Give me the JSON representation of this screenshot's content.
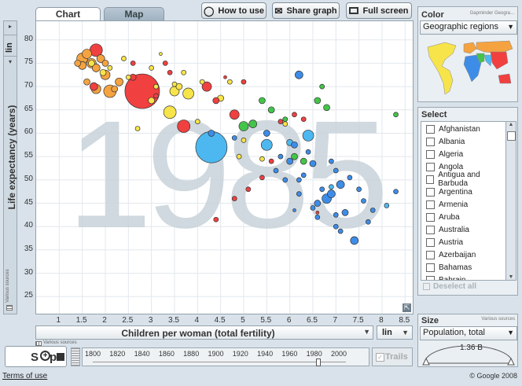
{
  "tabs": {
    "chart": "Chart",
    "map": "Map"
  },
  "toolbar": {
    "how_to_use": "How to use",
    "share_graph": "Share graph",
    "full_screen": "Full screen"
  },
  "y_axis": {
    "scale": "lin",
    "label": "Life expectancy (years)",
    "sources": "Various sources",
    "ticks": [
      "80",
      "75",
      "70",
      "65",
      "60",
      "55",
      "50",
      "45",
      "40",
      "35",
      "30",
      "25"
    ]
  },
  "x_axis": {
    "scale": "lin",
    "label": "Children per woman (total fertility)",
    "sources": "Various sources",
    "ticks": [
      "1",
      "1.5",
      "2",
      "2.5",
      "3",
      "3.5",
      "4",
      "4.5",
      "5",
      "5.5",
      "6",
      "6.5",
      "7",
      "7.5",
      "8",
      "8.5"
    ]
  },
  "year_watermark": "1985",
  "color_panel": {
    "title": "Color",
    "credit": "Gapminder Geogra…",
    "selected": "Geographic regions",
    "region_colors": {
      "americas": "#f7e44a",
      "europe": "#f4a340",
      "africa": "#3d8de8",
      "middle_east": "#44c44a",
      "south_asia": "#4db8f0",
      "east_asia": "#f04040"
    }
  },
  "select_panel": {
    "title": "Select",
    "countries": [
      "Afghanistan",
      "Albania",
      "Algeria",
      "Angola",
      "Antigua and Barbuda",
      "Argentina",
      "Armenia",
      "Aruba",
      "Australia",
      "Austria",
      "Azerbaijan",
      "Bahamas",
      "Bahrain"
    ],
    "deselect_all": "Deselect all"
  },
  "size_panel": {
    "title": "Size",
    "sources": "Various sources",
    "selected": "Population, total",
    "gauge_value": "1.36 B"
  },
  "playback": {
    "control": "Stop",
    "years": [
      "1800",
      "1820",
      "1840",
      "1860",
      "1880",
      "1900",
      "1920",
      "1940",
      "1960",
      "1980",
      "2000"
    ],
    "current_year": 1985,
    "trails": "Trails"
  },
  "footer": {
    "terms": "Terms of use",
    "copyright": "© Google 2008"
  },
  "chart_data": {
    "type": "scatter",
    "xlabel": "Children per woman (total fertility)",
    "ylabel": "Life expectancy (years)",
    "xlim": [
      0.5,
      8.7
    ],
    "ylim": [
      21,
      84
    ],
    "grid": true,
    "points": [
      {
        "x": 1.5,
        "y": 76,
        "r": 7,
        "c": "#f4a340"
      },
      {
        "x": 1.6,
        "y": 77,
        "r": 6,
        "c": "#f4a340"
      },
      {
        "x": 1.7,
        "y": 75,
        "r": 6,
        "c": "#f4a340"
      },
      {
        "x": 1.8,
        "y": 74,
        "r": 5,
        "c": "#f4a340"
      },
      {
        "x": 1.5,
        "y": 74.5,
        "r": 5,
        "c": "#f4a340"
      },
      {
        "x": 1.9,
        "y": 76,
        "r": 5,
        "c": "#f4a340"
      },
      {
        "x": 2.0,
        "y": 75,
        "r": 4,
        "c": "#f4a340"
      },
      {
        "x": 1.4,
        "y": 75,
        "r": 4,
        "c": "#f4a340"
      },
      {
        "x": 2.0,
        "y": 72.5,
        "r": 6,
        "c": "#f4a340"
      },
      {
        "x": 2.1,
        "y": 69,
        "r": 8,
        "c": "#f4a340"
      },
      {
        "x": 1.8,
        "y": 69.5,
        "r": 6,
        "c": "#f4a340"
      },
      {
        "x": 2.3,
        "y": 71,
        "r": 5,
        "c": "#f4a340"
      },
      {
        "x": 1.6,
        "y": 71,
        "r": 4,
        "c": "#f4a340"
      },
      {
        "x": 2.2,
        "y": 69.5,
        "r": 4,
        "c": "#f4a340"
      },
      {
        "x": 1.8,
        "y": 77.8,
        "r": 8,
        "c": "#f04040"
      },
      {
        "x": 1.75,
        "y": 70,
        "r": 5,
        "c": "#f04040"
      },
      {
        "x": 1.7,
        "y": 75,
        "r": 4,
        "c": "#f7e44a"
      },
      {
        "x": 1.95,
        "y": 73,
        "r": 4,
        "c": "#f7e44a"
      },
      {
        "x": 2.1,
        "y": 74,
        "r": 3,
        "c": "#f7e44a"
      },
      {
        "x": 2.4,
        "y": 76,
        "r": 3,
        "c": "#f7e44a"
      },
      {
        "x": 2.5,
        "y": 72,
        "r": 3,
        "c": "#f7e44a"
      },
      {
        "x": 2.8,
        "y": 69,
        "r": 22,
        "c": "#f04040"
      },
      {
        "x": 2.6,
        "y": 72,
        "r": 4,
        "c": "#f04040"
      },
      {
        "x": 3.1,
        "y": 68,
        "r": 3,
        "c": "#f04040"
      },
      {
        "x": 2.6,
        "y": 75,
        "r": 3,
        "c": "#f04040"
      },
      {
        "x": 3.3,
        "y": 75,
        "r": 3,
        "c": "#f04040"
      },
      {
        "x": 3.4,
        "y": 73,
        "r": 3,
        "c": "#f04040"
      },
      {
        "x": 3.4,
        "y": 64.5,
        "r": 8,
        "c": "#f7e44a"
      },
      {
        "x": 3.5,
        "y": 69,
        "r": 6,
        "c": "#f7e44a"
      },
      {
        "x": 3.8,
        "y": 68.5,
        "r": 7,
        "c": "#f7e44a"
      },
      {
        "x": 3.0,
        "y": 67,
        "r": 4,
        "c": "#f7e44a"
      },
      {
        "x": 3.6,
        "y": 70,
        "r": 4,
        "c": "#f7e44a"
      },
      {
        "x": 4.1,
        "y": 71,
        "r": 3,
        "c": "#f7e44a"
      },
      {
        "x": 4.0,
        "y": 62.5,
        "r": 3,
        "c": "#f7e44a"
      },
      {
        "x": 2.7,
        "y": 61,
        "r": 3,
        "c": "#f7e44a"
      },
      {
        "x": 3.1,
        "y": 70,
        "r": 3,
        "c": "#f7e44a"
      },
      {
        "x": 3.5,
        "y": 70.5,
        "r": 3,
        "c": "#f7e44a"
      },
      {
        "x": 3.7,
        "y": 73,
        "r": 3,
        "c": "#f7e44a"
      },
      {
        "x": 3.0,
        "y": 74,
        "r": 3,
        "c": "#f7e44a"
      },
      {
        "x": 4.7,
        "y": 71,
        "r": 3,
        "c": "#f7e44a"
      },
      {
        "x": 3.2,
        "y": 77,
        "r": 2,
        "c": "#f7e44a"
      },
      {
        "x": 4.5,
        "y": 67.5,
        "r": 4,
        "c": "#f7e44a"
      },
      {
        "x": 4.2,
        "y": 70,
        "r": 6,
        "c": "#f04040"
      },
      {
        "x": 4.4,
        "y": 67,
        "r": 4,
        "c": "#f04040"
      },
      {
        "x": 4.8,
        "y": 64,
        "r": 6,
        "c": "#f04040"
      },
      {
        "x": 3.7,
        "y": 61.5,
        "r": 8,
        "c": "#f04040"
      },
      {
        "x": 4.6,
        "y": 72,
        "r": 2,
        "c": "#f04040"
      },
      {
        "x": 5.0,
        "y": 71,
        "r": 3,
        "c": "#f04040"
      },
      {
        "x": 4.3,
        "y": 57,
        "r": 20,
        "c": "#4db8f0"
      },
      {
        "x": 5.5,
        "y": 57.5,
        "r": 7,
        "c": "#4db8f0"
      },
      {
        "x": 6.4,
        "y": 59.5,
        "r": 7,
        "c": "#4db8f0"
      },
      {
        "x": 6.9,
        "y": 48.5,
        "r": 3,
        "c": "#4db8f0"
      },
      {
        "x": 8.1,
        "y": 44.5,
        "r": 3,
        "c": "#4db8f0"
      },
      {
        "x": 6.0,
        "y": 58,
        "r": 4,
        "c": "#4db8f0"
      },
      {
        "x": 5.0,
        "y": 61.5,
        "r": 6,
        "c": "#44c44a"
      },
      {
        "x": 5.2,
        "y": 62,
        "r": 5,
        "c": "#44c44a"
      },
      {
        "x": 5.4,
        "y": 67,
        "r": 4,
        "c": "#44c44a"
      },
      {
        "x": 6.6,
        "y": 67,
        "r": 4,
        "c": "#44c44a"
      },
      {
        "x": 6.1,
        "y": 55,
        "r": 4,
        "c": "#44c44a"
      },
      {
        "x": 6.3,
        "y": 54,
        "r": 4,
        "c": "#44c44a"
      },
      {
        "x": 5.6,
        "y": 65,
        "r": 4,
        "c": "#44c44a"
      },
      {
        "x": 5.9,
        "y": 63,
        "r": 3,
        "c": "#44c44a"
      },
      {
        "x": 6.7,
        "y": 70,
        "r": 3,
        "c": "#44c44a"
      },
      {
        "x": 6.8,
        "y": 65.5,
        "r": 4,
        "c": "#44c44a"
      },
      {
        "x": 8.3,
        "y": 64,
        "r": 3,
        "c": "#44c44a"
      },
      {
        "x": 4.3,
        "y": 60,
        "r": 4,
        "c": "#3d8de8"
      },
      {
        "x": 6.0,
        "y": 54,
        "r": 4,
        "c": "#3d8de8"
      },
      {
        "x": 6.1,
        "y": 57.5,
        "r": 4,
        "c": "#3d8de8"
      },
      {
        "x": 5.5,
        "y": 60,
        "r": 4,
        "c": "#3d8de8"
      },
      {
        "x": 5.7,
        "y": 52,
        "r": 3,
        "c": "#3d8de8"
      },
      {
        "x": 6.2,
        "y": 50,
        "r": 3,
        "c": "#3d8de8"
      },
      {
        "x": 6.8,
        "y": 46,
        "r": 6,
        "c": "#3d8de8"
      },
      {
        "x": 6.9,
        "y": 47,
        "r": 5,
        "c": "#3d8de8"
      },
      {
        "x": 6.6,
        "y": 45,
        "r": 4,
        "c": "#3d8de8"
      },
      {
        "x": 7.1,
        "y": 49,
        "r": 5,
        "c": "#3d8de8"
      },
      {
        "x": 7.2,
        "y": 43,
        "r": 4,
        "c": "#3d8de8"
      },
      {
        "x": 7.4,
        "y": 37,
        "r": 5,
        "c": "#3d8de8"
      },
      {
        "x": 6.5,
        "y": 53.5,
        "r": 4,
        "c": "#3d8de8"
      },
      {
        "x": 6.4,
        "y": 56,
        "r": 3,
        "c": "#3d8de8"
      },
      {
        "x": 6.9,
        "y": 54,
        "r": 3,
        "c": "#3d8de8"
      },
      {
        "x": 7.0,
        "y": 52,
        "r": 3,
        "c": "#3d8de8"
      },
      {
        "x": 7.5,
        "y": 48,
        "r": 3,
        "c": "#3d8de8"
      },
      {
        "x": 7.7,
        "y": 41,
        "r": 3,
        "c": "#3d8de8"
      },
      {
        "x": 7.1,
        "y": 39,
        "r": 3,
        "c": "#3d8de8"
      },
      {
        "x": 6.7,
        "y": 48,
        "r": 3,
        "c": "#3d8de8"
      },
      {
        "x": 6.3,
        "y": 51,
        "r": 3,
        "c": "#3d8de8"
      },
      {
        "x": 7.0,
        "y": 40,
        "r": 3,
        "c": "#3d8de8"
      },
      {
        "x": 6.6,
        "y": 42,
        "r": 3,
        "c": "#3d8de8"
      },
      {
        "x": 5.9,
        "y": 50,
        "r": 3,
        "c": "#3d8de8"
      },
      {
        "x": 6.2,
        "y": 47,
        "r": 3,
        "c": "#3d8de8"
      },
      {
        "x": 7.6,
        "y": 45.5,
        "r": 3,
        "c": "#3d8de8"
      },
      {
        "x": 8.3,
        "y": 47.5,
        "r": 3,
        "c": "#3d8de8"
      },
      {
        "x": 5.8,
        "y": 55,
        "r": 3,
        "c": "#3d8de8"
      },
      {
        "x": 4.8,
        "y": 59,
        "r": 3,
        "c": "#3d8de8"
      },
      {
        "x": 6.5,
        "y": 44,
        "r": 3,
        "c": "#3d8de8"
      },
      {
        "x": 7.0,
        "y": 42.5,
        "r": 3,
        "c": "#3d8de8"
      },
      {
        "x": 6.1,
        "y": 43.5,
        "r": 2,
        "c": "#3d8de8"
      },
      {
        "x": 7.3,
        "y": 50.5,
        "r": 3,
        "c": "#3d8de8"
      },
      {
        "x": 7.8,
        "y": 43.5,
        "r": 3,
        "c": "#3d8de8"
      },
      {
        "x": 6.2,
        "y": 72.5,
        "r": 5,
        "c": "#3d8de8"
      },
      {
        "x": 4.8,
        "y": 46,
        "r": 3,
        "c": "#f04040"
      },
      {
        "x": 5.4,
        "y": 50.5,
        "r": 3,
        "c": "#f04040"
      },
      {
        "x": 5.1,
        "y": 48,
        "r": 3,
        "c": "#f04040"
      },
      {
        "x": 4.4,
        "y": 41.5,
        "r": 3,
        "c": "#f04040"
      },
      {
        "x": 5.6,
        "y": 54,
        "r": 3,
        "c": "#f04040"
      },
      {
        "x": 6.6,
        "y": 43,
        "r": 2,
        "c": "#f04040"
      },
      {
        "x": 5.8,
        "y": 62.5,
        "r": 3,
        "c": "#f04040"
      },
      {
        "x": 6.3,
        "y": 63,
        "r": 3,
        "c": "#f04040"
      },
      {
        "x": 6.1,
        "y": 64,
        "r": 3,
        "c": "#f04040"
      },
      {
        "x": 5.9,
        "y": 62,
        "r": 3,
        "c": "#f7e44a"
      },
      {
        "x": 5.0,
        "y": 58.5,
        "r": 3,
        "c": "#f7e44a"
      },
      {
        "x": 4.9,
        "y": 55,
        "r": 3,
        "c": "#f7e44a"
      },
      {
        "x": 5.4,
        "y": 54.5,
        "r": 3,
        "c": "#f7e44a"
      }
    ]
  }
}
